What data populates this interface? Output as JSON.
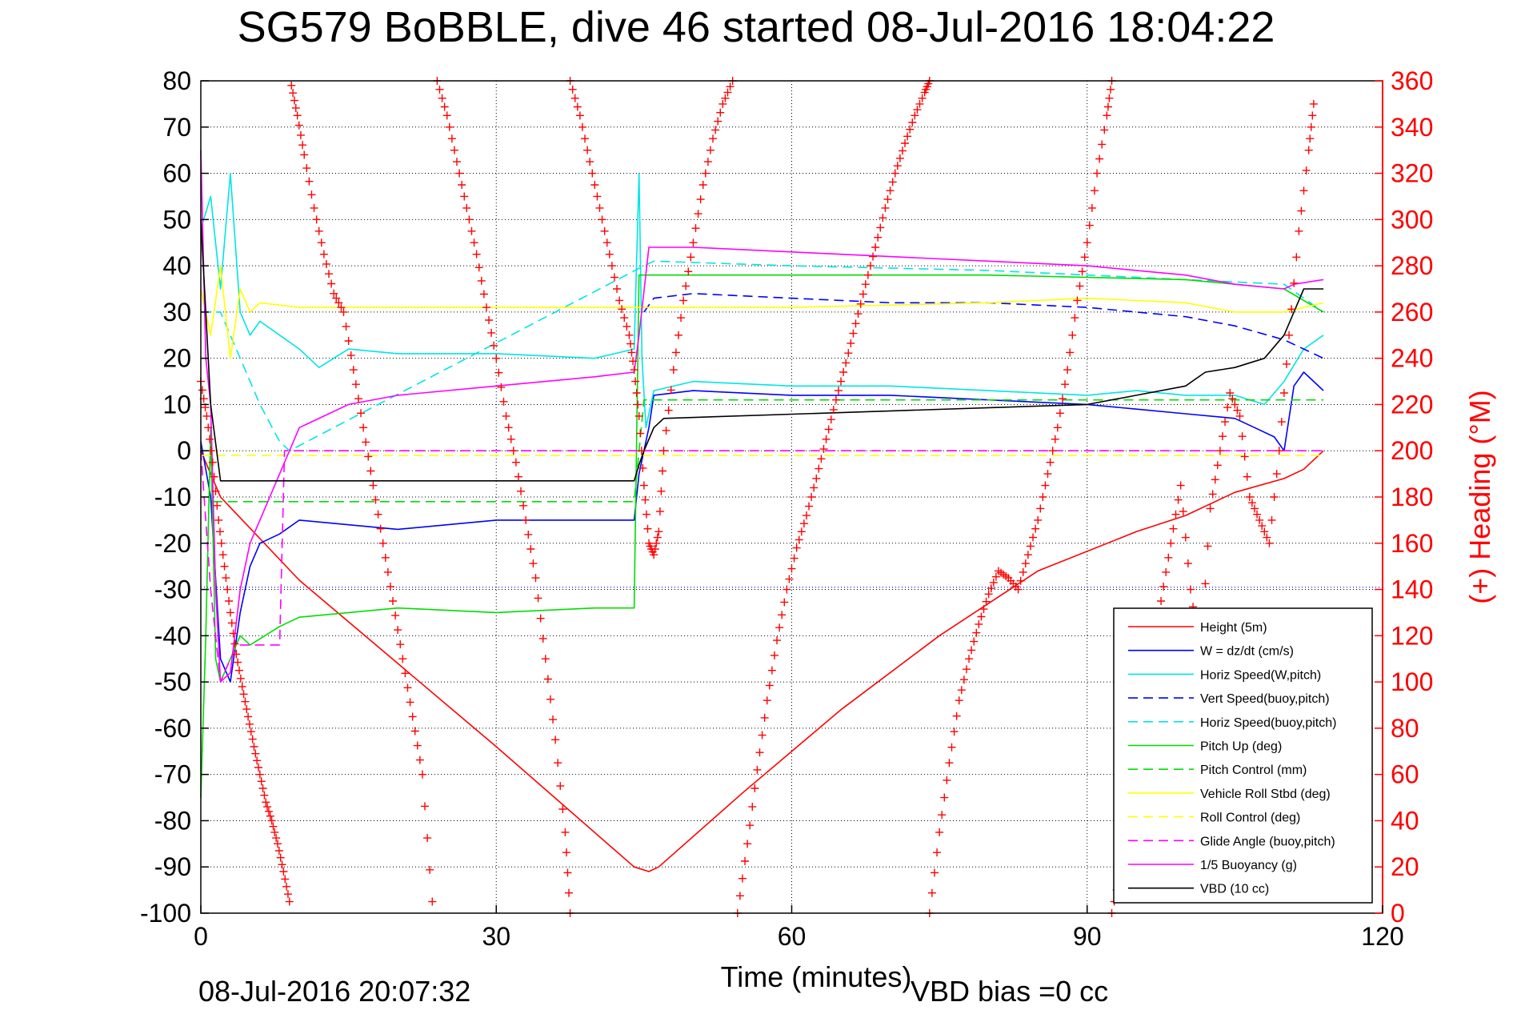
{
  "chart_data": {
    "type": "line",
    "title": "SG579 BoBBLE, dive 46 started 08-Jul-2016 18:04:22",
    "xlabel": "Time (minutes)",
    "y2label": "(+) Heading (°M)",
    "footer_left": "08-Jul-2016 20:07:32",
    "footer_right": "VBD bias =0 cc",
    "xlim": [
      0,
      120
    ],
    "ylim": [
      -100,
      80
    ],
    "y2lim": [
      0,
      360
    ],
    "x_ticks": [
      "0",
      "30",
      "60",
      "90",
      "120"
    ],
    "y_ticks": [
      "80",
      "70",
      "60",
      "50",
      "40",
      "30",
      "20",
      "10",
      "0",
      "-10",
      "-20",
      "-30",
      "-40",
      "-50",
      "-60",
      "-70",
      "-80",
      "-90",
      "-100"
    ],
    "y2_ticks": [
      "360",
      "340",
      "320",
      "300",
      "280",
      "260",
      "240",
      "220",
      "200",
      "180",
      "160",
      "140",
      "120",
      "100",
      "80",
      "60",
      "40",
      "20",
      "0"
    ],
    "grid": true,
    "legend_position": "bottom-right",
    "reference_lines": [
      {
        "y": -29.5,
        "color": "#0000ff",
        "style": "dotted"
      }
    ],
    "series": [
      {
        "name": "Height (5m)",
        "color": "#ff0000",
        "style": "solid",
        "x": [
          0,
          2,
          10,
          20,
          30,
          44,
          45.5,
          46.5,
          55,
          65,
          75,
          85,
          95,
          100,
          105,
          110,
          112,
          114
        ],
        "y": [
          0,
          -10,
          -28,
          -46,
          -64,
          -90,
          -91,
          -90,
          -74,
          -56,
          -40,
          -26,
          -17.5,
          -14,
          -9,
          -6,
          -4,
          0
        ]
      },
      {
        "name": "W = dz/dt (cm/s)",
        "color": "#0000ff",
        "style": "solid",
        "x": [
          0,
          1,
          2,
          3,
          4,
          5,
          6,
          8,
          10,
          15,
          20,
          30,
          40,
          44,
          44.5,
          45.5,
          46,
          50,
          60,
          70,
          80,
          90,
          95,
          100,
          105,
          107,
          109,
          110,
          111,
          112,
          114
        ],
        "y": [
          2,
          -10,
          -45,
          -50,
          -35,
          -25,
          -20,
          -18,
          -15,
          -16,
          -17,
          -15,
          -15,
          -15,
          -5,
          5,
          12,
          13,
          12,
          12,
          11,
          10,
          9,
          8,
          7,
          5,
          3,
          0,
          14,
          17,
          13
        ]
      },
      {
        "name": "Horiz Speed(W,pitch)",
        "color": "#00e5e5",
        "style": "solid",
        "x": [
          0,
          1,
          2,
          3,
          4,
          5,
          6,
          8,
          10,
          12,
          15,
          20,
          30,
          40,
          44,
          44.5,
          44.8,
          45.2,
          46,
          50,
          60,
          70,
          80,
          90,
          95,
          100,
          105,
          108,
          110,
          112,
          114
        ],
        "y": [
          48,
          55,
          35,
          60,
          30,
          25,
          28,
          25,
          22,
          18,
          22,
          21,
          21,
          20,
          22,
          60,
          20,
          5,
          13,
          15,
          14,
          14,
          13,
          12,
          13,
          12,
          12,
          10,
          15,
          22,
          25
        ]
      },
      {
        "name": "Vert Speed(buoy,pitch)",
        "color": "#0000ff",
        "style": "dashed",
        "x": [
          45,
          46,
          50,
          60,
          70,
          80,
          90,
          100,
          105,
          110,
          112,
          114
        ],
        "y": [
          30,
          33,
          34,
          33,
          32,
          32,
          31,
          29,
          27,
          24,
          22,
          20
        ]
      },
      {
        "name": "Horiz Speed(buoy,pitch)",
        "color": "#00e5e5",
        "style": "dashed",
        "x": [
          0,
          2,
          4,
          6,
          8,
          9,
          45,
          46,
          60,
          80,
          100,
          110,
          114
        ],
        "y": [
          30,
          30,
          20,
          10,
          2,
          0,
          40,
          41,
          40,
          39,
          37,
          36,
          30
        ]
      },
      {
        "name": "Pitch Up (deg)",
        "color": "#00dd00",
        "style": "solid",
        "x": [
          0,
          0.5,
          1,
          1.5,
          2,
          3,
          4,
          5,
          8,
          10,
          20,
          30,
          40,
          44,
          44.5,
          46,
          60,
          80,
          100,
          110,
          114
        ],
        "y": [
          -75,
          -40,
          5,
          -45,
          -50,
          -45,
          -40,
          -42,
          -38,
          -36,
          -34,
          -35,
          -34,
          -34,
          38,
          38,
          38,
          38,
          37,
          35,
          30
        ]
      },
      {
        "name": "Pitch Control (mm)",
        "color": "#00dd00",
        "style": "dashed",
        "x": [
          0,
          1,
          1.2,
          44,
          45,
          114
        ],
        "y": [
          0,
          0,
          -11,
          -11,
          11,
          11
        ]
      },
      {
        "name": "Vehicle Roll Stbd (deg)",
        "color": "#ffff00",
        "style": "solid",
        "x": [
          0,
          1,
          2,
          3,
          4,
          5,
          6,
          10,
          20,
          30,
          44,
          46,
          60,
          80,
          90,
          100,
          105,
          110,
          114
        ],
        "y": [
          35,
          25,
          40,
          20,
          35,
          30,
          32,
          31,
          31,
          31,
          31,
          31,
          31,
          32,
          33,
          32,
          30,
          30,
          32
        ]
      },
      {
        "name": "Roll Control (deg)",
        "color": "#ffff00",
        "style": "dashed",
        "x": [
          0,
          114
        ],
        "y": [
          -1,
          -1
        ]
      },
      {
        "name": "Glide Angle (buoy,pitch)",
        "color": "#ff00ff",
        "style": "dashed",
        "x": [
          0,
          1,
          2,
          3,
          4,
          6,
          8,
          8.5,
          9,
          114
        ],
        "y": [
          0,
          -30,
          -50,
          -45,
          -42,
          -42,
          -42,
          0,
          0,
          0
        ]
      },
      {
        "name": "1/5 Buoyancy (g)",
        "color": "#ff00ff",
        "style": "solid",
        "x": [
          0,
          0.5,
          1,
          1.5,
          2,
          3,
          4,
          5,
          8,
          10,
          15,
          20,
          30,
          40,
          44,
          44.5,
          45.5,
          50,
          60,
          70,
          80,
          90,
          95,
          100,
          105,
          110,
          111,
          114
        ],
        "y": [
          65,
          20,
          10,
          -30,
          -50,
          -48,
          -30,
          -20,
          -5,
          5,
          10,
          12,
          14,
          16,
          17,
          25,
          44,
          44,
          43,
          42,
          41,
          40,
          39,
          38,
          36,
          35,
          36,
          37
        ]
      },
      {
        "name": "VBD (10 cc)",
        "color": "#000000",
        "style": "solid",
        "x": [
          0,
          0.5,
          1,
          2,
          44,
          44.5,
          45,
          46,
          47,
          90,
          95,
          100,
          102,
          105,
          108,
          110,
          111,
          112,
          114
        ],
        "y": [
          50,
          30,
          10,
          -6.5,
          -6.5,
          -3,
          0,
          5,
          7,
          10,
          12,
          14,
          17,
          18,
          20,
          25,
          30,
          35,
          35
        ]
      }
    ],
    "heading_series": {
      "name": "(+) Heading",
      "color": "#ff0000",
      "marker": "+",
      "segments": [
        {
          "x": [
            0,
            0.6,
            1.2,
            1.8,
            2.4,
            3.0,
            3.6,
            4.2,
            4.8,
            5.4,
            6.0,
            6.6,
            7.2,
            7.8,
            8.4,
            9.0
          ],
          "y": [
            230,
            215,
            195,
            170,
            150,
            130,
            112,
            98,
            85,
            72,
            60,
            48,
            40,
            30,
            18,
            5
          ]
        },
        {
          "x": [
            9.2,
            9.8,
            10.5,
            11.5,
            12.5,
            13.5,
            14.5,
            15.5,
            16.5,
            17.5,
            18.5,
            19.5,
            20.5,
            21.5,
            22.5,
            23.5
          ],
          "y": [
            358,
            345,
            328,
            305,
            285,
            268,
            260,
            235,
            210,
            185,
            160,
            135,
            110,
            85,
            60,
            5
          ]
        },
        {
          "x": [
            24.0,
            25,
            26,
            27,
            28,
            29,
            30,
            31,
            32,
            33,
            34,
            35,
            36,
            37,
            37.5
          ],
          "y": [
            360,
            345,
            325,
            305,
            285,
            262,
            240,
            215,
            195,
            170,
            145,
            110,
            75,
            35,
            0
          ]
        },
        {
          "x": [
            37.5,
            38.5,
            39.5,
            40.5,
            41.5,
            42.5,
            43.5,
            44.0,
            44.5,
            45.0,
            45.5,
            46.0,
            46.5,
            47.0,
            48,
            49,
            50,
            51,
            52,
            53,
            54
          ],
          "y": [
            360,
            345,
            325,
            305,
            285,
            265,
            250,
            235,
            215,
            185,
            160,
            155,
            165,
            200,
            235,
            265,
            290,
            315,
            335,
            350,
            360
          ]
        },
        {
          "x": [
            54.5,
            55.5,
            56.5,
            57.5,
            58.5,
            59.5,
            60.5,
            61.5,
            62.5,
            63.5,
            64.5,
            65.5,
            66.5,
            67.5,
            68.5,
            69.5,
            70.5,
            71.5,
            72.5,
            73.5,
            74.0
          ],
          "y": [
            0,
            30,
            62,
            92,
            118,
            140,
            158,
            172,
            188,
            205,
            222,
            238,
            255,
            272,
            288,
            305,
            320,
            333,
            345,
            355,
            360
          ]
        },
        {
          "x": [
            74.0,
            75,
            76,
            77,
            78,
            79,
            80,
            81,
            82,
            83,
            84,
            85,
            86,
            87,
            88,
            89,
            90,
            91,
            92,
            92.5
          ],
          "y": [
            0,
            35,
            65,
            92,
            110,
            125,
            138,
            148,
            145,
            140,
            155,
            170,
            190,
            210,
            235,
            265,
            290,
            320,
            345,
            360
          ]
        },
        {
          "x": [
            92.5,
            93.5,
            94.5,
            95.5,
            96.5,
            97.5,
            98.5,
            99.5,
            100.5,
            101.5,
            102.5,
            103.5,
            104.5,
            105.5,
            106.5,
            107.5,
            108.5,
            109.5,
            110.5,
            111.5,
            112.5,
            113.0
          ],
          "y": [
            0,
            20,
            48,
            78,
            105,
            135,
            160,
            185,
            140,
            110,
            175,
            200,
            225,
            215,
            180,
            170,
            160,
            200,
            250,
            295,
            330,
            350
          ]
        }
      ]
    }
  }
}
